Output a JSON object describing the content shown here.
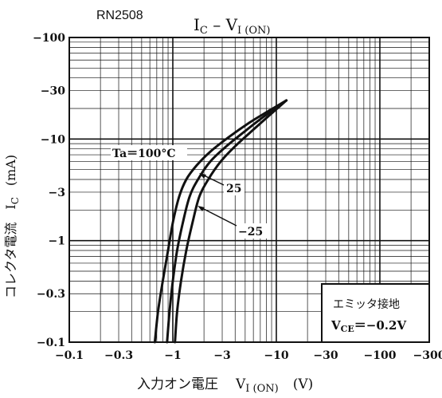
{
  "page": {
    "part_number": "RN2508"
  },
  "chart_data": {
    "type": "line",
    "title": "I_C – V_I(ON)",
    "title_parts": {
      "main1": "I",
      "sub1": "C",
      "dash": " – ",
      "main2": "V",
      "sub2": "I (ON)"
    },
    "xlabel": "入力オン電圧  V_I (ON)  (V)",
    "xlabel_parts": {
      "jp": "入力オン電圧",
      "var": "V",
      "sub": "I (ON)",
      "unit": "(V)"
    },
    "ylabel": "コレクタ電流  I_C  (mA)",
    "ylabel_parts": {
      "jp": "コレクタ電流",
      "var": "I",
      "sub": "C",
      "unit": "(mA)"
    },
    "x_scale": "log",
    "y_scale": "log",
    "xlim": [
      -0.1,
      -300
    ],
    "ylim": [
      -0.1,
      -100
    ],
    "x_ticks": [
      {
        "value": 0.1,
        "label": "−0.1"
      },
      {
        "value": 0.3,
        "label": "−0.3"
      },
      {
        "value": 1,
        "label": "−1"
      },
      {
        "value": 3,
        "label": "−3"
      },
      {
        "value": 10,
        "label": "−10"
      },
      {
        "value": 30,
        "label": "−30"
      },
      {
        "value": 100,
        "label": "−100"
      },
      {
        "value": 300,
        "label": "−300"
      }
    ],
    "y_ticks": [
      {
        "value": 0.1,
        "label": "−0.1"
      },
      {
        "value": 0.3,
        "label": "−0.3"
      },
      {
        "value": 1,
        "label": "−1"
      },
      {
        "value": 3,
        "label": "−3"
      },
      {
        "value": 10,
        "label": "−10"
      },
      {
        "value": 30,
        "label": "−30"
      },
      {
        "value": 100,
        "label": "−100"
      }
    ],
    "grid": true,
    "series": [
      {
        "name": "Ta=100°C",
        "label_text": "Ta＝100°C",
        "x": [
          -0.67,
          -0.72,
          -0.8,
          -0.9,
          -1.0,
          -1.15,
          -1.35,
          -1.7,
          -2.3,
          -3.5,
          -5.5,
          -8.5,
          -12.5
        ],
        "y": [
          -0.1,
          -0.2,
          -0.4,
          -0.8,
          -1.5,
          -2.7,
          -4.0,
          -5.5,
          -7.5,
          -10.5,
          -14.5,
          -19.0,
          -24.0
        ]
      },
      {
        "name": "25",
        "label_text": "25",
        "x": [
          -0.88,
          -0.93,
          -1.0,
          -1.1,
          -1.25,
          -1.45,
          -1.75,
          -2.3,
          -3.3,
          -5.0,
          -7.5,
          -12.5
        ],
        "y": [
          -0.1,
          -0.2,
          -0.4,
          -0.8,
          -1.5,
          -2.7,
          -4.0,
          -6.0,
          -8.5,
          -12.0,
          -16.5,
          -24.0
        ]
      },
      {
        "name": "-25",
        "label_text": "−25",
        "x": [
          -1.05,
          -1.1,
          -1.2,
          -1.35,
          -1.55,
          -1.8,
          -2.2,
          -2.9,
          -4.0,
          -5.8,
          -8.5,
          -12.5
        ],
        "y": [
          -0.1,
          -0.2,
          -0.4,
          -0.8,
          -1.5,
          -2.7,
          -4.0,
          -6.0,
          -8.5,
          -12.0,
          -17.0,
          -24.0
        ]
      }
    ],
    "annotation": {
      "line1": "エミッタ接地",
      "line2_var": "V",
      "line2_sub": "CE",
      "line2_value": "＝−0.2V"
    }
  }
}
